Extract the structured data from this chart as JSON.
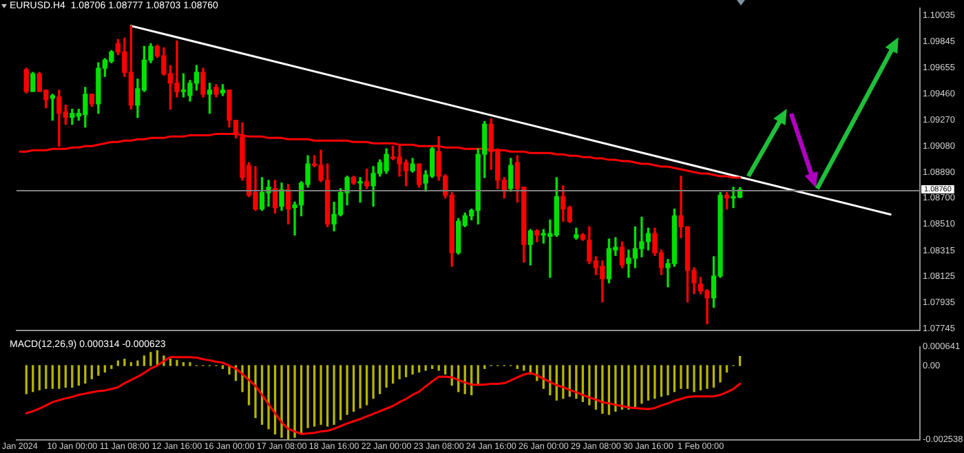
{
  "chart_data": [
    {
      "type": "candlestick",
      "title": "EURUSD.H4  1.08706 1.08777 1.08703 1.08760",
      "categories": [
        null,
        null,
        null,
        null,
        null,
        null,
        null,
        null,
        null,
        null,
        null,
        null,
        null,
        null,
        null,
        null,
        null,
        null,
        null,
        null,
        null,
        null,
        null,
        null,
        null,
        null,
        null,
        null,
        null,
        null,
        null,
        null,
        null,
        null,
        null,
        null,
        null,
        null,
        null,
        null,
        null,
        null,
        null,
        null,
        null,
        null,
        null,
        null,
        null,
        null,
        null,
        null,
        null,
        null,
        null,
        null,
        null,
        null,
        null,
        null,
        null,
        null,
        null,
        null,
        null,
        null,
        null,
        null,
        null,
        null,
        null,
        null,
        null,
        null,
        null,
        null,
        null,
        null,
        null,
        null,
        null,
        null,
        null,
        null,
        null,
        null,
        null,
        null,
        null,
        null,
        null,
        null,
        null,
        null,
        null,
        null,
        null,
        null,
        null,
        null,
        null,
        null,
        null,
        null,
        null,
        null,
        null,
        null,
        null,
        null,
        null,
        null,
        null,
        null,
        null,
        null,
        null,
        null,
        null,
        null,
        null,
        null,
        null,
        null,
        null,
        null,
        null,
        null,
        null,
        null,
        null,
        null,
        null,
        null,
        null,
        null,
        null,
        null
      ],
      "ohlc": [
        null,
        [
          1.0964,
          1.0965,
          1.0947,
          1.0948
        ],
        [
          1.0948,
          1.0962,
          1.0948,
          1.0961
        ],
        [
          1.0961,
          1.0962,
          1.0948,
          1.0948
        ],
        [
          1.0949,
          1.0949,
          1.0936,
          1.0942
        ],
        [
          1.0943,
          1.0946,
          1.0927,
          1.0945
        ],
        [
          1.0944,
          1.0949,
          1.0908,
          1.0932
        ],
        [
          1.0933,
          1.0938,
          1.0924,
          1.0929
        ],
        [
          1.0929,
          1.0935,
          1.0924,
          1.0932
        ],
        [
          1.093,
          1.0935,
          1.0927,
          1.0932
        ],
        [
          1.0931,
          1.0951,
          1.0922,
          1.0946
        ],
        [
          1.0946,
          1.0946,
          1.0937,
          1.0939
        ],
        [
          1.0939,
          1.0969,
          1.0932,
          1.0965
        ],
        [
          1.0965,
          1.0972,
          1.0959,
          1.0971
        ],
        [
          1.097,
          1.0978,
          1.0969,
          1.0977
        ],
        [
          1.0983,
          1.0986,
          1.0975,
          1.0977
        ],
        [
          1.0977,
          1.0987,
          1.0959,
          1.0962
        ],
        [
          1.0962,
          1.0996,
          1.0935,
          1.0938
        ],
        [
          1.0938,
          1.0957,
          1.0929,
          1.095
        ],
        [
          1.0949,
          1.0981,
          1.0948,
          1.0971
        ],
        [
          1.0971,
          1.0983,
          1.0969,
          1.0981
        ],
        [
          1.0981,
          1.0982,
          1.0973,
          1.0974
        ],
        [
          1.0974,
          1.098,
          1.096,
          1.0961
        ],
        [
          1.0961,
          1.0967,
          1.0935,
          1.0954
        ],
        [
          1.0954,
          1.0985,
          1.0944,
          1.0948
        ],
        [
          1.0948,
          1.0961,
          1.0944,
          1.0949
        ],
        [
          1.0945,
          1.0956,
          1.0941,
          1.0954
        ],
        [
          1.0954,
          1.0967,
          1.0949,
          1.0962
        ],
        [
          1.0962,
          1.0965,
          1.0944,
          1.0946
        ],
        [
          1.0946,
          1.0954,
          1.0932,
          1.0949
        ],
        [
          1.0951,
          1.0953,
          1.0944,
          1.0946
        ],
        [
          1.0947,
          1.0953,
          1.0945,
          1.0949
        ],
        [
          1.0949,
          1.0949,
          1.0922,
          1.0927
        ],
        [
          1.0927,
          1.0927,
          1.0914,
          1.0917
        ],
        [
          1.0915,
          1.0925,
          1.0883,
          1.0885
        ],
        [
          1.0894,
          1.0896,
          1.0871,
          1.0872
        ],
        [
          1.0874,
          1.0893,
          1.0861,
          1.0862
        ],
        [
          1.0862,
          1.0885,
          1.0861,
          1.0874
        ],
        [
          1.0874,
          1.0883,
          1.0864,
          1.0878
        ],
        [
          1.0877,
          1.0883,
          1.0859,
          1.0863
        ],
        [
          1.0864,
          1.0881,
          1.0861,
          1.0876
        ],
        [
          1.0876,
          1.088,
          1.0851,
          1.0862
        ],
        [
          1.0863,
          1.0867,
          1.0843,
          1.0865
        ],
        [
          1.0865,
          1.0882,
          1.0857,
          1.0881
        ],
        [
          1.088,
          1.0901,
          1.0878,
          1.0895
        ],
        [
          1.0895,
          1.0901,
          1.0893,
          1.0894
        ],
        [
          1.0894,
          1.0905,
          1.0882,
          1.0883
        ],
        [
          1.0883,
          1.0895,
          1.0849,
          1.0851
        ],
        [
          1.0851,
          1.0867,
          1.0846,
          1.0858
        ],
        [
          1.0858,
          1.0877,
          1.0857,
          1.0874
        ],
        [
          1.0874,
          1.0886,
          1.0865,
          1.0885
        ],
        [
          1.0885,
          1.0886,
          1.088,
          1.0881
        ],
        [
          1.0881,
          1.0885,
          1.0867,
          1.0882
        ],
        [
          1.0882,
          1.0891,
          1.0877,
          1.0879
        ],
        [
          1.0879,
          1.0893,
          1.0864,
          1.0888
        ],
        [
          1.0888,
          1.0898,
          1.0886,
          1.0896
        ],
        [
          1.089,
          1.0906,
          1.0888,
          1.0902
        ],
        [
          1.09,
          1.0908,
          1.0898,
          1.0899
        ],
        [
          1.09,
          1.0908,
          1.0886,
          1.0895
        ],
        [
          1.0896,
          1.0898,
          1.0879,
          1.089
        ],
        [
          1.089,
          1.0899,
          1.0889,
          1.0895
        ],
        [
          1.0895,
          1.0895,
          1.0878,
          1.088
        ],
        [
          1.0881,
          1.089,
          1.0875,
          1.0887
        ],
        [
          1.0886,
          1.0907,
          1.0885,
          1.0906
        ],
        [
          1.0904,
          1.0915,
          1.0883,
          1.0886
        ],
        [
          1.0886,
          1.0887,
          1.087,
          1.0872
        ],
        [
          1.0872,
          1.0874,
          1.082,
          1.083
        ],
        [
          1.083,
          1.0855,
          1.0829,
          1.0853
        ],
        [
          1.085,
          1.0859,
          1.0849,
          1.0857
        ],
        [
          1.0857,
          1.0862,
          1.0854,
          1.0861
        ],
        [
          1.0861,
          1.0906,
          1.0851,
          1.0902
        ],
        [
          1.0902,
          1.0926,
          1.0885,
          1.0924
        ],
        [
          1.0924,
          1.0928,
          1.0891,
          1.0904
        ],
        [
          1.0905,
          1.0906,
          1.0877,
          1.0883
        ],
        [
          1.0883,
          1.0885,
          1.087,
          1.0876
        ],
        [
          1.0877,
          1.0899,
          1.0875,
          1.0894
        ],
        [
          1.0896,
          1.0901,
          1.0867,
          1.0877
        ],
        [
          1.0878,
          1.0878,
          1.0823,
          1.0836
        ],
        [
          1.0836,
          1.0847,
          1.0821,
          1.0846
        ],
        [
          1.0846,
          1.0847,
          1.0838,
          1.0843
        ],
        [
          1.0843,
          1.0847,
          1.0837,
          1.0844
        ],
        [
          1.0842,
          1.0854,
          1.0812,
          1.0844
        ],
        [
          1.0843,
          1.0885,
          1.0842,
          1.0871
        ],
        [
          1.0871,
          1.0879,
          1.0853,
          1.0862
        ],
        [
          1.0863,
          1.0864,
          1.0852,
          1.0853
        ],
        [
          1.0841,
          1.0848,
          1.084,
          1.0843
        ],
        [
          1.0843,
          1.0844,
          1.0839,
          1.084
        ],
        [
          1.0839,
          1.0849,
          1.0822,
          1.0824
        ],
        [
          1.0824,
          1.0827,
          1.0814,
          1.0819
        ],
        [
          1.082,
          1.0824,
          1.0794,
          1.0811
        ],
        [
          1.0811,
          1.084,
          1.0808,
          1.0833
        ],
        [
          1.0832,
          1.0841,
          1.0828,
          1.0834
        ],
        [
          1.0834,
          1.0838,
          1.0819,
          1.0821
        ],
        [
          1.0822,
          1.0832,
          1.0812,
          1.0826
        ],
        [
          1.0826,
          1.0849,
          1.0819,
          1.0833
        ],
        [
          1.0833,
          1.0856,
          1.0827,
          1.0838
        ],
        [
          1.0838,
          1.0848,
          1.0832,
          1.0844
        ],
        [
          1.0844,
          1.0848,
          1.0828,
          1.083
        ],
        [
          1.083,
          1.0832,
          1.0814,
          1.0819
        ],
        [
          1.0819,
          1.0825,
          1.0805,
          1.0822
        ],
        [
          1.0822,
          1.0862,
          1.082,
          1.0857
        ],
        [
          1.0857,
          1.0886,
          1.0841,
          1.0849
        ],
        [
          1.0849,
          1.0849,
          1.0794,
          1.0817
        ],
        [
          1.0817,
          1.0819,
          1.08,
          1.0808
        ],
        [
          1.0807,
          1.0812,
          1.08,
          1.0802
        ],
        [
          1.0802,
          1.0803,
          1.0778,
          1.0797
        ],
        [
          1.0797,
          1.0827,
          1.079,
          1.0813
        ],
        [
          1.0813,
          1.0874,
          1.0812,
          1.0872
        ],
        [
          1.0872,
          1.0874,
          1.0862,
          1.087
        ],
        [
          1.087,
          1.0878,
          1.0863,
          1.0871
        ],
        [
          1.08706,
          1.08777,
          1.08703,
          1.0876
        ],
        null,
        null,
        null,
        null,
        null,
        null,
        null,
        null,
        null,
        null,
        null,
        null,
        null,
        null,
        null,
        null,
        null,
        null,
        null,
        null,
        null,
        null,
        null,
        null,
        null,
        null,
        null
      ],
      "colors": [
        null,
        "#ff0000",
        "#00e000",
        "#ff0000",
        "#ff0000",
        "#00e000",
        "#ff0000",
        "#ff0000",
        "#00e000",
        "#00e000",
        "#00e000",
        "#ff0000",
        "#00e000",
        "#00e000",
        "#00e000",
        "#ff0000",
        "#ff0000",
        "#ff0000",
        "#00e000",
        "#00e000",
        "#00e000",
        "#ff0000",
        "#ff0000",
        "#ff0000",
        "#ff0000",
        "#00e000",
        "#00e000",
        "#00e000",
        "#ff0000",
        "#00e000",
        "#ff0000",
        "#00e000",
        "#ff0000",
        "#ff0000",
        "#ff0000",
        "#ff0000",
        "#ff0000",
        "#00e000",
        "#00e000",
        "#ff0000",
        "#00e000",
        "#ff0000",
        "#00e000",
        "#00e000",
        "#00e000",
        "#ff0000",
        "#ff0000",
        "#ff0000",
        "#00e000",
        "#00e000",
        "#00e000",
        "#ff0000",
        "#00e000",
        "#ff0000",
        "#00e000",
        "#00e000",
        "#00e000",
        "#ff0000",
        "#ff0000",
        "#ff0000",
        "#00e000",
        "#ff0000",
        "#00e000",
        "#00e000",
        "#ff0000",
        "#ff0000",
        "#ff0000",
        "#00e000",
        "#00e000",
        "#00e000",
        "#00e000",
        "#00e000",
        "#ff0000",
        "#ff0000",
        "#ff0000",
        "#00e000",
        "#ff0000",
        "#ff0000",
        "#00e000",
        "#ff0000",
        "#00e000",
        "#00e000",
        "#00e000",
        "#ff0000",
        "#ff0000",
        "#00e000",
        "#ff0000",
        "#ff0000",
        "#ff0000",
        "#ff0000",
        "#00e000",
        "#00e000",
        "#ff0000",
        "#00e000",
        "#00e000",
        "#00e000",
        "#00e000",
        "#ff0000",
        "#ff0000",
        "#00e000",
        "#00e000",
        "#ff0000",
        "#ff0000",
        "#ff0000",
        "#ff0000",
        "#ff0000",
        "#00e000",
        "#00e000",
        "#ff0000",
        "#00e000",
        "#00e000",
        null,
        null,
        null,
        null,
        null,
        null,
        null,
        null,
        null,
        null,
        null,
        null,
        null,
        null,
        null,
        null,
        null,
        null,
        null,
        null,
        null,
        null,
        null,
        null,
        null,
        null,
        null
      ],
      "series": [
        {
          "type": "line",
          "color": "#ff0000",
          "values": [
            1.0904,
            1.0904,
            1.0905,
            1.0905,
            1.0905,
            1.0906,
            1.0906,
            1.0906,
            1.0907,
            1.0907,
            1.0908,
            1.0908,
            1.0909,
            1.091,
            1.0911,
            1.0911,
            1.0912,
            1.0912,
            1.0913,
            1.0913,
            1.0914,
            1.0914,
            1.0914,
            1.0915,
            1.0915,
            1.0915,
            1.0916,
            1.0916,
            1.0916,
            1.0916,
            1.0917,
            1.0917,
            1.0917,
            1.0917,
            1.0916,
            1.0915,
            1.0915,
            1.0915,
            1.0914,
            1.0914,
            1.0914,
            1.0913,
            1.0913,
            1.0913,
            1.0913,
            1.0912,
            1.0912,
            1.0912,
            1.0912,
            1.0912,
            1.0912,
            1.0911,
            1.0911,
            1.0911,
            1.091,
            1.091,
            1.091,
            1.091,
            1.0909,
            1.0909,
            1.0909,
            1.0908,
            1.0908,
            1.0908,
            1.0908,
            1.0907,
            1.0907,
            1.0907,
            1.0906,
            1.0906,
            1.0906,
            1.0906,
            1.0905,
            1.0905,
            1.0905,
            1.0904,
            1.0904,
            1.0904,
            1.0903,
            1.0903,
            1.0903,
            1.0903,
            1.0902,
            1.0902,
            1.0901,
            1.0901,
            1.09,
            1.09,
            1.0899,
            1.0899,
            1.0898,
            1.0898,
            1.0897,
            1.0897,
            1.0896,
            1.0895,
            1.0895,
            1.0894,
            1.0893,
            1.0893,
            1.0892,
            1.0891,
            1.089,
            1.0889,
            1.0888,
            1.0888,
            1.0887,
            1.0886,
            1.0886,
            1.0885,
            1.0885,
            null,
            null,
            null,
            null,
            null,
            null,
            null,
            null,
            null,
            null,
            null,
            null,
            null,
            null,
            null,
            null,
            null,
            null,
            null,
            null,
            null,
            null,
            null,
            null,
            null,
            null,
            null
          ]
        },
        {
          "type": "line",
          "color": "#ffffff",
          "values": [
            null,
            null,
            null,
            null,
            null,
            null,
            null,
            null,
            null,
            null,
            null,
            null,
            null,
            null,
            null,
            null,
            null,
            1.0996,
            null,
            null,
            null,
            null,
            null,
            null,
            null,
            null,
            null,
            null,
            null,
            null,
            null,
            null,
            null,
            null,
            null,
            null,
            null,
            null,
            null,
            null,
            null,
            null,
            null,
            null,
            null,
            null,
            null,
            null,
            null,
            null,
            null,
            null,
            null,
            null,
            null,
            null,
            null,
            null,
            null,
            null,
            null,
            null,
            null,
            null,
            null,
            null,
            null,
            null,
            null,
            null,
            null,
            null,
            null,
            null,
            null,
            null,
            null,
            null,
            null,
            null,
            null,
            null,
            null,
            null,
            null,
            null,
            null,
            null,
            null,
            null,
            null,
            null,
            null,
            null,
            null,
            null,
            null,
            null,
            null,
            null,
            null,
            null,
            null,
            null,
            null,
            null,
            null,
            null,
            null,
            null,
            null,
            null,
            null,
            null,
            null,
            null,
            null,
            null,
            null,
            null,
            null,
            null,
            null,
            null,
            null,
            null,
            null,
            null,
            null,
            null,
            null,
            null,
            null,
            1.0858,
            null,
            null,
            null,
            null
          ]
        }
      ],
      "ylim": [
        1.0773,
        1.1009
      ],
      "yticks": [
        1.10035,
        1.09845,
        1.09655,
        {
          "value": 1.0946,
          "label": "1.09460"
        },
        {
          "value": 1.0927,
          "label": "1.09270"
        },
        {
          "value": 1.0908,
          "label": "1.09080"
        },
        {
          "value": 1.0889,
          "label": "1.08890"
        },
        {
          "value": 1.087,
          "label": "1.08700"
        },
        {
          "value": 1.0851,
          "label": "1.08510"
        },
        1.08315,
        1.08125,
        1.07935,
        1.07745
      ],
      "tick_labels": "y",
      "ref_lines": [
        {
          "axis": "y",
          "value": 1.0876,
          "label": "1.08760",
          "color": "#808080"
        }
      ]
    },
    {
      "type": "bar",
      "title": "MACD(12,26,9) 0.000314 -0.000623",
      "categories": [
        "Jan 2024",
        null,
        null,
        null,
        null,
        null,
        null,
        null,
        "10 Jan 00:00",
        null,
        null,
        null,
        null,
        null,
        null,
        null,
        "11 Jan 08:00",
        null,
        null,
        null,
        null,
        null,
        null,
        null,
        "12 Jan 16:00",
        null,
        null,
        null,
        null,
        null,
        null,
        null,
        "16 Jan 00:00",
        null,
        null,
        null,
        null,
        null,
        null,
        null,
        "17 Jan 08:00",
        null,
        null,
        null,
        null,
        null,
        null,
        null,
        "18 Jan 16:00",
        null,
        null,
        null,
        null,
        null,
        null,
        null,
        "22 Jan 00:00",
        null,
        null,
        null,
        null,
        null,
        null,
        null,
        "23 Jan 08:00",
        null,
        null,
        null,
        null,
        null,
        null,
        null,
        "24 Jan 16:00",
        null,
        null,
        null,
        null,
        null,
        null,
        null,
        "26 Jan 00:00",
        null,
        null,
        null,
        null,
        null,
        null,
        null,
        "29 Jan 08:00",
        null,
        null,
        null,
        null,
        null,
        null,
        null,
        "30 Jan 16:00",
        null,
        null,
        null,
        null,
        null,
        null,
        null,
        "1 Feb 00:00",
        null,
        null,
        null,
        null,
        null,
        null,
        null,
        null,
        null,
        null,
        null,
        null,
        null,
        null,
        null,
        null,
        null,
        null,
        null,
        null,
        null,
        null,
        null,
        null,
        null,
        null,
        null,
        null,
        null,
        null,
        null,
        null,
        null
      ],
      "series": [
        {
          "color": "#b4b400",
          "values": [
            null,
            -0.00096,
            -0.00089,
            -0.00083,
            -0.00078,
            -0.00078,
            -0.00078,
            -0.00074,
            -0.00074,
            -0.00067,
            -0.0006,
            -0.00045,
            -0.00033,
            -0.00022,
            -0.0001,
            0.00016,
            0.00022,
            0.0001,
            0.00016,
            0.00033,
            0.00045,
            0.00051,
            0.00033,
            0.00022,
            0.00018,
            0.0001,
            0.0001,
            0,
            0,
            0,
            0,
            -0.0001,
            -0.00029,
            -0.00051,
            -0.00089,
            -0.00134,
            -0.00178,
            -0.00201,
            -0.00216,
            -0.00234,
            -0.00245,
            -0.00252,
            -0.00245,
            -0.0023,
            -0.00212,
            -0.00207,
            -0.00201,
            -0.00207,
            -0.00201,
            -0.00185,
            -0.00167,
            -0.00156,
            -0.00145,
            -0.00134,
            -0.00112,
            -0.00096,
            -0.00074,
            -0.0006,
            -0.00045,
            -0.00038,
            -0.00029,
            -0.00022,
            -0.00016,
            -0.0001,
            -0.00016,
            -0.00029,
            -0.00067,
            -0.00089,
            -0.00096,
            -0.001,
            -0.00067,
            -0.0001,
            0,
            0,
            0,
            0,
            -0.0001,
            -0.00016,
            -0.00029,
            -0.00051,
            -0.00078,
            -0.001,
            -0.00118,
            -0.00112,
            -0.00105,
            -0.00112,
            -0.00123,
            -0.00134,
            -0.00149,
            -0.00163,
            -0.00167,
            -0.00156,
            -0.00149,
            -0.00149,
            -0.0014,
            -0.00129,
            -0.00118,
            -0.00112,
            -0.00105,
            -0.001,
            -0.00089,
            -0.00078,
            -0.00078,
            -0.00089,
            -0.00083,
            -0.00078,
            -0.00074,
            -0.00056,
            -0.00022,
            0,
            0.000314,
            null,
            null,
            null,
            null,
            null,
            null,
            null,
            null,
            null,
            null,
            null,
            null,
            null,
            null,
            null,
            null,
            null,
            null,
            null,
            null,
            null,
            null,
            null,
            null,
            null,
            null,
            null
          ]
        },
        {
          "type": "line",
          "color": "#ff0000",
          "values": [
            null,
            -0.00163,
            -0.00156,
            -0.00147,
            -0.00136,
            -0.00125,
            -0.00118,
            -0.00112,
            -0.00107,
            -0.001,
            -0.00096,
            -0.00091,
            -0.00087,
            -0.00085,
            -0.0008,
            -0.00074,
            -0.0006,
            -0.00049,
            -0.00038,
            -0.00025,
            -0.0001,
            0,
            0.00016,
            0.00029,
            0.00029,
            0.00029,
            0.00029,
            0.00027,
            0.00022,
            0.00018,
            0.00013,
            0.0001,
            0,
            -0.0001,
            -0.00029,
            -0.00049,
            -0.00069,
            -0.001,
            -0.00132,
            -0.00163,
            -0.00194,
            -0.00216,
            -0.00225,
            -0.00234,
            -0.00232,
            -0.0023,
            -0.00225,
            -0.00223,
            -0.00216,
            -0.00207,
            -0.00198,
            -0.0019,
            -0.00183,
            -0.00174,
            -0.00165,
            -0.00156,
            -0.00147,
            -0.00138,
            -0.00125,
            -0.00114,
            -0.001,
            -0.00089,
            -0.00071,
            -0.00054,
            -0.00038,
            -0.00038,
            -0.0004,
            -0.00049,
            -0.00058,
            -0.00065,
            -0.00065,
            -0.00065,
            -0.00062,
            -0.00062,
            -0.0006,
            -0.00051,
            -0.0004,
            -0.00031,
            -0.00025,
            -0.00033,
            -0.00045,
            -0.00056,
            -0.00067,
            -0.00074,
            -0.00083,
            -0.00091,
            -0.001,
            -0.00109,
            -0.00116,
            -0.00125,
            -0.00129,
            -0.00134,
            -0.00138,
            -0.00143,
            -0.00145,
            -0.00147,
            -0.00149,
            -0.00145,
            -0.00136,
            -0.00129,
            -0.0012,
            -0.00114,
            -0.00107,
            -0.00105,
            -0.00105,
            -0.00105,
            -0.00105,
            -0.001,
            -0.00091,
            -0.0008,
            -0.000623,
            null,
            null,
            null,
            null,
            null,
            null,
            null,
            null,
            null,
            null,
            null,
            null,
            null,
            null,
            null,
            null,
            null,
            null,
            null,
            null,
            null,
            null,
            null,
            null,
            null,
            null,
            null
          ]
        }
      ],
      "ylim": [
        -0.002538,
        0.000641
      ],
      "yticks": [
        0.000641,
        {
          "value": 0,
          "label": "0.00"
        },
        -0.002538
      ]
    }
  ]
}
